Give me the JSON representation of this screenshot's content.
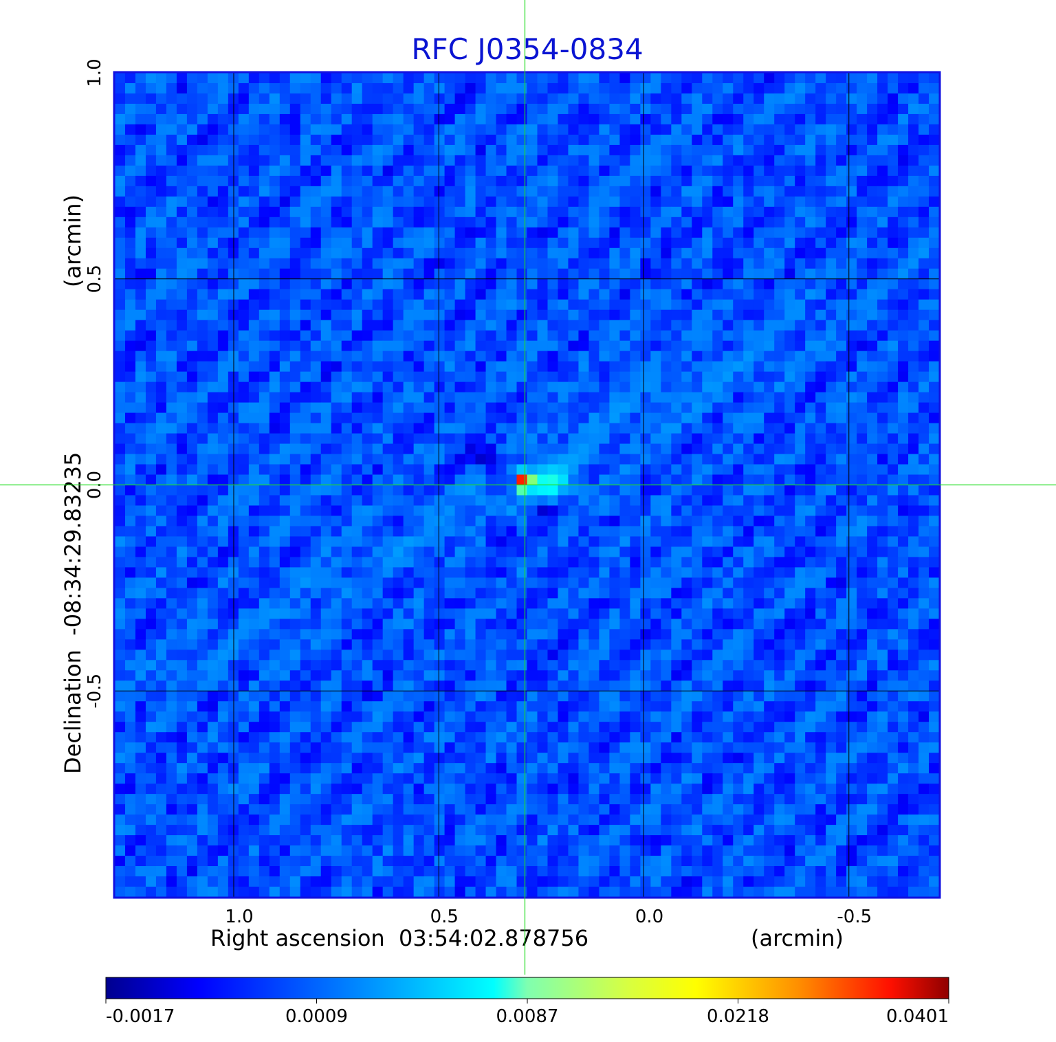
{
  "chart_data": {
    "type": "heatmap",
    "title": "RFC J0354-0834",
    "xlabel": "Right ascension  03:54:02.878756",
    "xunit": "(arcmin)",
    "ylabel": "Declination  -08:34:29.83235",
    "yunit": "(arcmin)",
    "xlim": [
      1.29,
      -0.72
    ],
    "ylim": [
      -1.0,
      1.0
    ],
    "x_ticks": [
      {
        "value": 1.0,
        "label": "1.0"
      },
      {
        "value": 0.5,
        "label": "0.5"
      },
      {
        "value": 0.0,
        "label": "0.0"
      },
      {
        "value": -0.5,
        "label": "-0.5"
      }
    ],
    "y_ticks": [
      {
        "value": 1.0,
        "label": "1.0"
      },
      {
        "value": 0.5,
        "label": "0.5"
      },
      {
        "value": 0.0,
        "label": "0.0"
      },
      {
        "value": -0.5,
        "label": "-0.5"
      }
    ],
    "grid": true,
    "crosshair": {
      "x": 0.29,
      "y": 0.0,
      "color": "#22dd22"
    },
    "colormap": "jet",
    "colorbar": {
      "range": [
        -0.0017,
        0.0401
      ],
      "ticks": [
        {
          "value": -0.0017,
          "label": "-0.0017"
        },
        {
          "value": 0.0009,
          "label": "0.0009"
        },
        {
          "value": 0.0087,
          "label": "0.0087"
        },
        {
          "value": 0.0218,
          "label": "0.0218"
        },
        {
          "value": 0.0401,
          "label": "0.0401"
        }
      ],
      "position": "bottom"
    },
    "source": {
      "x": 0.29,
      "y": 0.01,
      "peak": 0.0401
    },
    "background_level": 0.0004,
    "frame_color": "#1010e0"
  }
}
